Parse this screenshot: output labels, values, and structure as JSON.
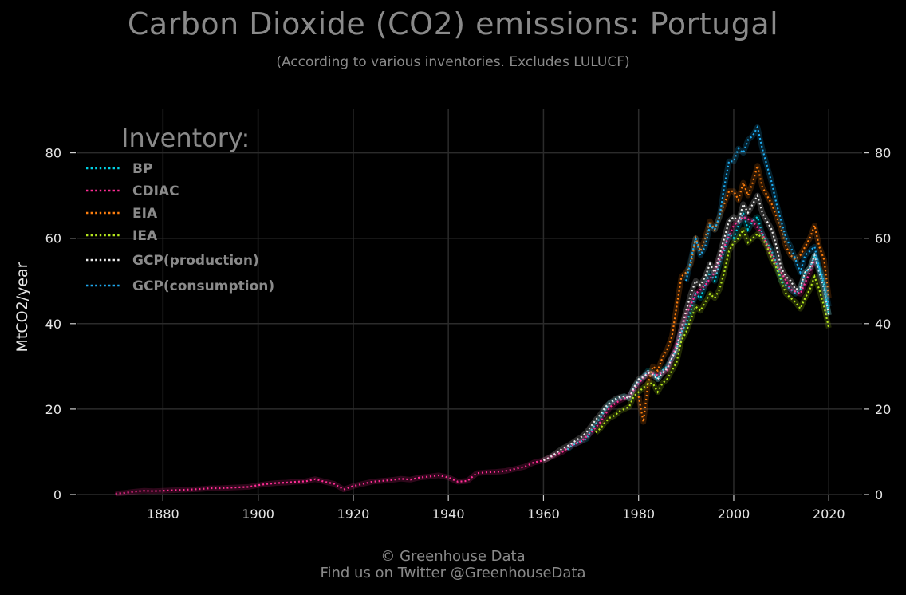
{
  "header": {
    "title": "Carbon Dioxide (CO2) emissions: Portugal",
    "subtitle": "(According to various inventories. Excludes LULUCF)"
  },
  "footer": {
    "credit": "© Greenhouse Data",
    "twitter": "Find us on Twitter @GreenhouseData"
  },
  "chart_data": {
    "type": "line",
    "title": "Carbon Dioxide (CO2) emissions: Portugal",
    "subtitle": "(According to various inventories. Excludes LULUCF)",
    "xlabel": "",
    "ylabel": "MtCO2/year",
    "xlim": [
      1862,
      2027
    ],
    "ylim": [
      0,
      90
    ],
    "x_ticks": [
      1880,
      1900,
      1920,
      1940,
      1960,
      1980,
      2000,
      2020
    ],
    "y_ticks": [
      0,
      20,
      40,
      60,
      80
    ],
    "grid": true,
    "legend": {
      "title": "Inventory:",
      "placement": "top-left"
    },
    "series": [
      {
        "name": "BP",
        "color": "#00d2e6",
        "x": [
          1965,
          1966,
          1967,
          1968,
          1969,
          1970,
          1971,
          1972,
          1973,
          1974,
          1975,
          1976,
          1977,
          1978,
          1979,
          1980,
          1981,
          1982,
          1983,
          1984,
          1985,
          1986,
          1987,
          1988,
          1989,
          1990,
          1991,
          1992,
          1993,
          1994,
          1995,
          1996,
          1997,
          1998,
          1999,
          2000,
          2001,
          2002,
          2003,
          2004,
          2005,
          2006,
          2007,
          2008,
          2009,
          2010,
          2011,
          2012,
          2013,
          2014,
          2015,
          2016,
          2017,
          2018,
          2019,
          2020
        ],
        "y": [
          10.5,
          11.5,
          12,
          12.5,
          13,
          15,
          16.5,
          18,
          20,
          21.5,
          22,
          22.5,
          23,
          22.5,
          25,
          26.5,
          27.5,
          29,
          28.5,
          27,
          29,
          30,
          32,
          34,
          38,
          40,
          43,
          47,
          46,
          49,
          52,
          50,
          54,
          57,
          61,
          60,
          63,
          66,
          62,
          64,
          65,
          61,
          59,
          57,
          54,
          50,
          49,
          48,
          47,
          48,
          52,
          53,
          56,
          53,
          49,
          42
        ]
      },
      {
        "name": "CDIAC",
        "color": "#ff2d95",
        "x": [
          1870,
          1872,
          1874,
          1876,
          1878,
          1880,
          1882,
          1884,
          1886,
          1888,
          1890,
          1892,
          1894,
          1896,
          1898,
          1900,
          1902,
          1904,
          1906,
          1908,
          1910,
          1912,
          1913,
          1914,
          1916,
          1918,
          1920,
          1922,
          1924,
          1926,
          1928,
          1930,
          1932,
          1934,
          1936,
          1938,
          1940,
          1942,
          1944,
          1946,
          1948,
          1950,
          1952,
          1954,
          1956,
          1958,
          1960,
          1962,
          1964,
          1966,
          1968,
          1970,
          1972,
          1974,
          1976,
          1978,
          1980,
          1982,
          1984,
          1986,
          1988,
          1990,
          1992,
          1994,
          1996,
          1998,
          2000,
          2002,
          2004,
          2006,
          2008,
          2010,
          2012,
          2014,
          2016,
          2017
        ],
        "y": [
          0.2,
          0.4,
          0.7,
          0.9,
          0.8,
          0.9,
          1.0,
          1.1,
          1.2,
          1.3,
          1.5,
          1.5,
          1.6,
          1.7,
          1.8,
          2.2,
          2.5,
          2.7,
          2.8,
          3.0,
          3.1,
          3.6,
          3.3,
          3.0,
          2.5,
          1.2,
          2.0,
          2.5,
          3.0,
          3.2,
          3.4,
          3.7,
          3.5,
          4.0,
          4.2,
          4.5,
          4.0,
          3.0,
          3.2,
          5.0,
          5.2,
          5.3,
          5.5,
          6.0,
          6.5,
          7.5,
          8.0,
          9.0,
          10.0,
          11.5,
          12.5,
          14.5,
          17.0,
          20.5,
          22.0,
          23.0,
          26.0,
          28.5,
          28.0,
          29.0,
          35.0,
          42.0,
          47.0,
          49.0,
          52.0,
          58.0,
          63.0,
          65.0,
          64.0,
          61.0,
          56.0,
          52.0,
          48.0,
          47.0,
          52.0,
          55.0
        ]
      },
      {
        "name": "EIA",
        "color": "#ff7f0e",
        "x": [
          1980,
          1981,
          1982,
          1983,
          1984,
          1985,
          1986,
          1987,
          1988,
          1989,
          1990,
          1991,
          1992,
          1993,
          1994,
          1995,
          1996,
          1997,
          1998,
          1999,
          2000,
          2001,
          2002,
          2003,
          2004,
          2005,
          2006,
          2007,
          2008,
          2009,
          2010,
          2011,
          2012,
          2013,
          2014,
          2015,
          2016,
          2017,
          2018,
          2019,
          2020
        ],
        "y": [
          23,
          17,
          26,
          30,
          29,
          32,
          34,
          37,
          44,
          51,
          52,
          54,
          60,
          57,
          60,
          64,
          62,
          65,
          68,
          71,
          71,
          69,
          73,
          70,
          73,
          77,
          72,
          70,
          68,
          65,
          62,
          58,
          56,
          55,
          56,
          58,
          60,
          63,
          58,
          55,
          46
        ]
      },
      {
        "name": "IEA",
        "color": "#b5e61d",
        "x": [
          1971,
          1972,
          1973,
          1974,
          1975,
          1976,
          1977,
          1978,
          1979,
          1980,
          1981,
          1982,
          1983,
          1984,
          1985,
          1986,
          1987,
          1988,
          1989,
          1990,
          1991,
          1992,
          1993,
          1994,
          1995,
          1996,
          1997,
          1998,
          1999,
          2000,
          2001,
          2002,
          2003,
          2004,
          2005,
          2006,
          2007,
          2008,
          2009,
          2010,
          2011,
          2012,
          2013,
          2014,
          2015,
          2016,
          2017,
          2018,
          2019,
          2020
        ],
        "y": [
          14.5,
          15.5,
          17,
          18,
          18.5,
          19.5,
          20,
          20.5,
          23,
          24,
          25,
          26,
          26,
          24,
          26,
          27,
          29,
          31,
          36,
          38,
          41,
          44,
          43,
          45,
          47,
          46,
          48,
          52,
          57,
          59,
          60,
          62,
          59,
          60,
          61,
          60,
          58,
          55,
          53,
          50,
          47,
          46,
          45,
          43.5,
          46,
          48,
          51,
          48,
          44,
          39
        ]
      },
      {
        "name": "GCP(production)",
        "color": "#ededed",
        "x": [
          1960,
          1961,
          1962,
          1963,
          1964,
          1965,
          1966,
          1967,
          1968,
          1969,
          1970,
          1971,
          1972,
          1973,
          1974,
          1975,
          1976,
          1977,
          1978,
          1979,
          1980,
          1981,
          1982,
          1983,
          1984,
          1985,
          1986,
          1987,
          1988,
          1989,
          1990,
          1991,
          1992,
          1993,
          1994,
          1995,
          1996,
          1997,
          1998,
          1999,
          2000,
          2001,
          2002,
          2003,
          2004,
          2005,
          2006,
          2007,
          2008,
          2009,
          2010,
          2011,
          2012,
          2013,
          2014,
          2015,
          2016,
          2017,
          2018,
          2019,
          2020
        ],
        "y": [
          8.0,
          8.5,
          9.2,
          10.0,
          10.8,
          11.3,
          12.0,
          12.8,
          13.5,
          14.5,
          16.0,
          17.5,
          18.8,
          20.5,
          21.5,
          22.3,
          22.8,
          23.0,
          22.5,
          25.0,
          27.0,
          27.5,
          28.5,
          28.0,
          27.0,
          28.5,
          29.5,
          32.0,
          34.0,
          39.0,
          43.0,
          47.0,
          50.0,
          49.0,
          51.0,
          54.0,
          52.0,
          56.0,
          60.0,
          64.0,
          65.0,
          64.0,
          68.0,
          66.0,
          68.0,
          70.0,
          66.0,
          64.0,
          62.0,
          58.0,
          53.0,
          51.0,
          50.0,
          48.0,
          48.5,
          52.0,
          53.0,
          56.0,
          52.0,
          48.0,
          42.0
        ]
      },
      {
        "name": "GCP(consumption)",
        "color": "#1eaaf0",
        "x": [
          1990,
          1991,
          1992,
          1993,
          1994,
          1995,
          1996,
          1997,
          1998,
          1999,
          2000,
          2001,
          2002,
          2003,
          2004,
          2005,
          2006,
          2007,
          2008,
          2009,
          2010,
          2011,
          2012,
          2013,
          2014,
          2015,
          2016,
          2017,
          2018,
          2019,
          2020
        ],
        "y": [
          50,
          55,
          60,
          56,
          58,
          63,
          62,
          65,
          72,
          78,
          78,
          81,
          80,
          83,
          84,
          86,
          81,
          77,
          73,
          68,
          64,
          60,
          58,
          55,
          52,
          56,
          57,
          58,
          53,
          50,
          44
        ]
      }
    ]
  }
}
